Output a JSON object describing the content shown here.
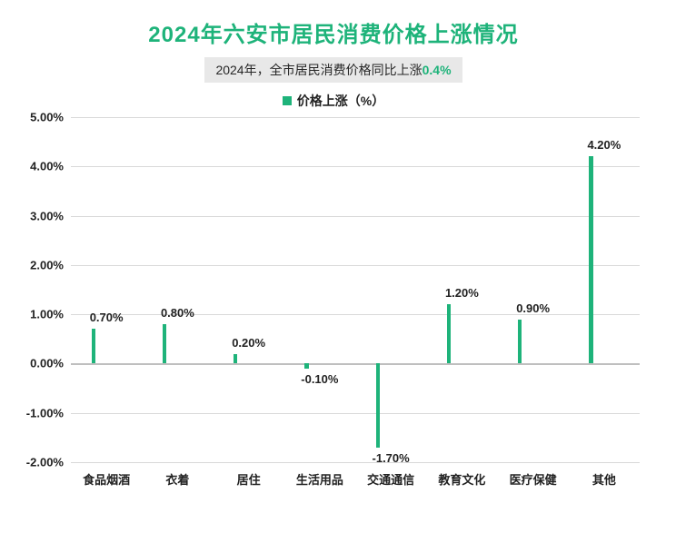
{
  "title": {
    "text": "2024年六安市居民消费价格上涨情况",
    "color": "#1eb37a",
    "fontsize": 24
  },
  "subtitle": {
    "prefix": "2024年，全市居民消费价格同比上涨",
    "highlight": "0.4%",
    "prefix_color": "#262626",
    "highlight_color": "#1eb37a",
    "background": "#e8e8e8",
    "fontsize": 14
  },
  "legend": {
    "label": "价格上涨（%）",
    "swatch_color": "#1eb37a",
    "text_color": "#222222"
  },
  "chart": {
    "type": "bar",
    "categories": [
      "食品烟酒",
      "衣着",
      "居住",
      "生活用品",
      "交通通信",
      "教育文化",
      "医疗保健",
      "其他"
    ],
    "values": [
      0.7,
      0.8,
      0.2,
      -0.1,
      -1.7,
      1.2,
      0.9,
      4.2
    ],
    "value_labels": [
      "0.70%",
      "0.80%",
      "0.20%",
      "-0.10%",
      "-1.70%",
      "1.20%",
      "0.90%",
      "4.20%"
    ],
    "bar_color": "#1eb37a",
    "ylim": [
      -2.0,
      5.0
    ],
    "yticks": [
      -2.0,
      -1.0,
      0.0,
      1.0,
      2.0,
      3.0,
      4.0,
      5.0
    ],
    "ytick_labels": [
      "-2.00%",
      "-1.00%",
      "0.00%",
      "1.00%",
      "2.00%",
      "3.00%",
      "4.00%",
      "5.00%"
    ],
    "grid_color": "#d9d9d9",
    "zero_line_color": "#bfbfbf",
    "axis_text_color": "#222222",
    "label_fontsize": 13,
    "bar_width_ratio": 0.42,
    "background_color": "#ffffff"
  }
}
